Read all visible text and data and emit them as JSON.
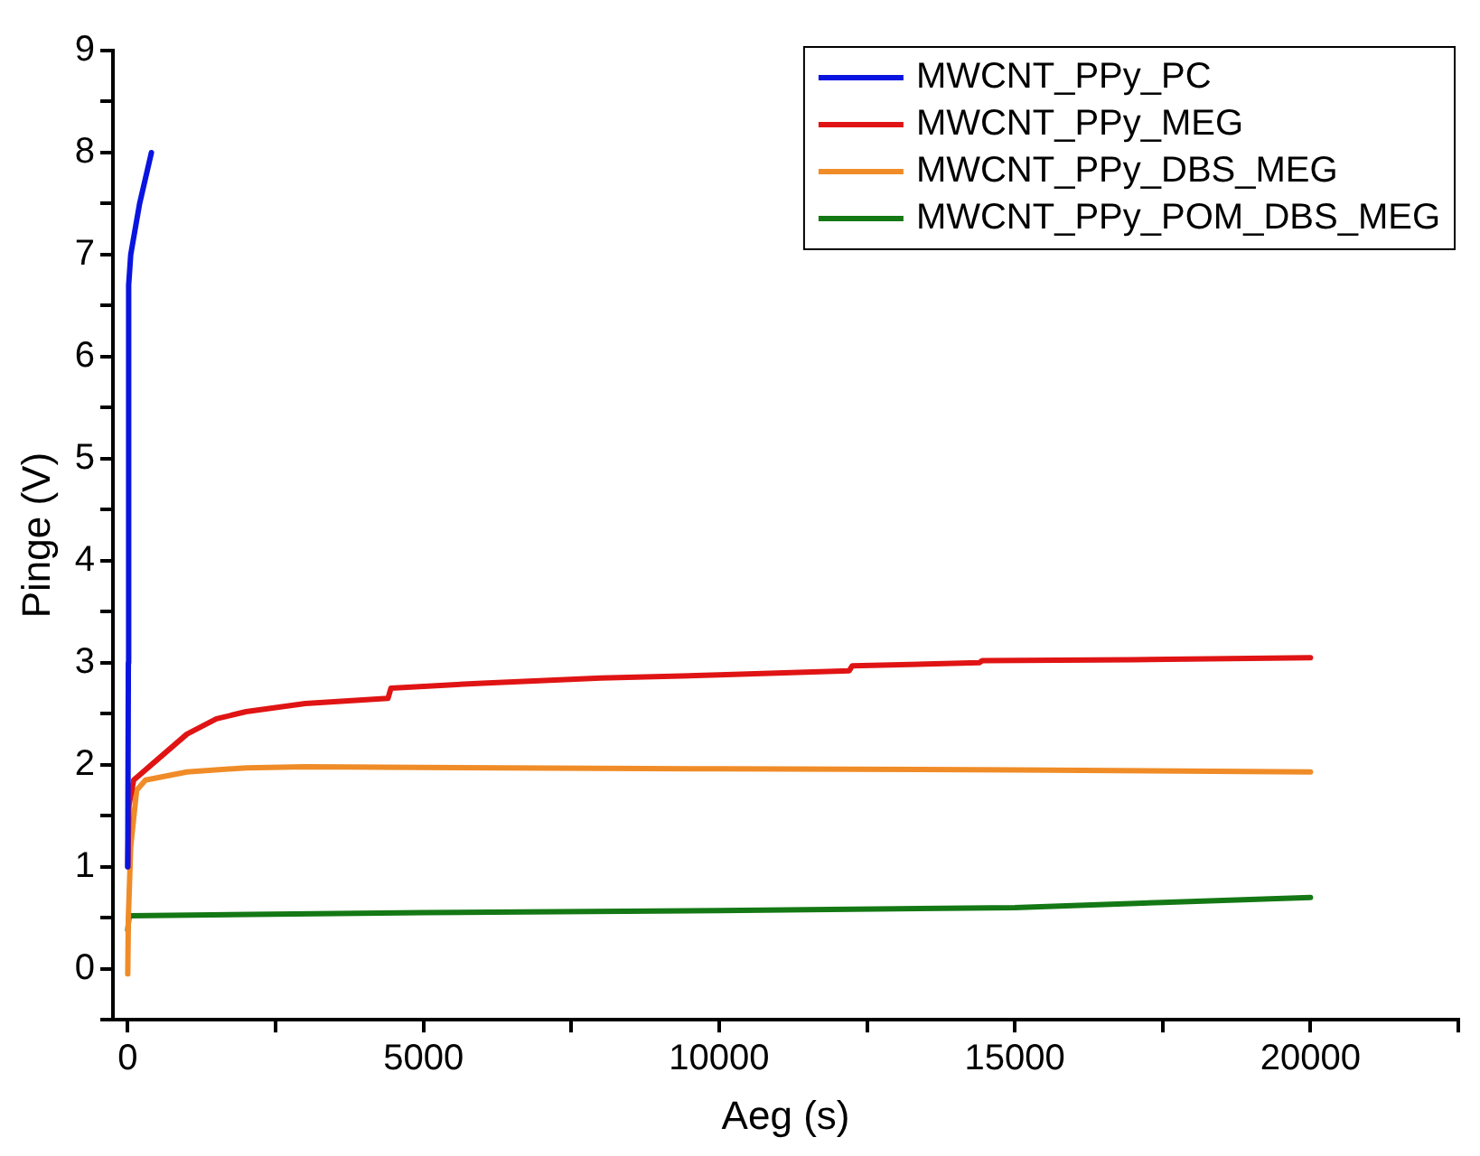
{
  "chart_data": {
    "type": "line",
    "xlabel": "Aeg (s)",
    "ylabel": "Pinge (V)",
    "xlim": [
      -250,
      22500
    ],
    "xticks": [
      0,
      {
        "value": 2500,
        "label": null
      },
      5000,
      {
        "value": 7500,
        "label": null
      },
      10000,
      {
        "value": 12500,
        "label": null
      },
      15000,
      {
        "value": 17500,
        "label": null
      },
      20000,
      {
        "value": 22500,
        "label": null
      }
    ],
    "ylim": [
      -0.5,
      9
    ],
    "yticks": [
      {
        "value": -0.5,
        "label": null
      },
      0,
      {
        "value": 0.5,
        "label": null
      },
      1,
      {
        "value": 1.5,
        "label": null
      },
      2,
      {
        "value": 2.5,
        "label": null
      },
      3,
      {
        "value": 3.5,
        "label": null
      },
      4,
      {
        "value": 4.5,
        "label": null
      },
      5,
      {
        "value": 5.5,
        "label": null
      },
      6,
      {
        "value": 6.5,
        "label": null
      },
      7,
      {
        "value": 7.5,
        "label": null
      },
      8,
      {
        "value": 8.5,
        "label": null
      },
      9
    ],
    "grid": false,
    "legend": "top right",
    "marker": "none",
    "line_style": "solid",
    "series": [
      {
        "name": "MWCNT_PPy_PC",
        "color": "#0a14e0",
        "x": [
          0,
          10,
          15,
          50,
          200,
          400
        ],
        "values": [
          1.0,
          3.0,
          6.7,
          7.0,
          7.5,
          8.0
        ]
      },
      {
        "name": "MWCNT_PPy_MEG",
        "color": "#e01414",
        "x": [
          0,
          20,
          100,
          500,
          1000,
          1500,
          2000,
          3000,
          4400,
          4450,
          6000,
          8000,
          10000,
          12200,
          12250,
          14400,
          14450,
          17000,
          20000
        ],
        "values": [
          1.0,
          1.6,
          1.85,
          2.05,
          2.3,
          2.45,
          2.52,
          2.6,
          2.65,
          2.75,
          2.8,
          2.85,
          2.88,
          2.92,
          2.97,
          3.0,
          3.02,
          3.03,
          3.05
        ]
      },
      {
        "name": "MWCNT_PPy_DBS_MEG",
        "color": "#f08c28",
        "x": [
          0,
          10,
          50,
          150,
          300,
          1000,
          2000,
          3000,
          10000,
          15000,
          20000
        ],
        "values": [
          -0.05,
          0.5,
          1.2,
          1.75,
          1.85,
          1.93,
          1.97,
          1.98,
          1.96,
          1.95,
          1.93
        ]
      },
      {
        "name": "MWCNT_PPy_POM_DBS_MEG",
        "color": "#147814",
        "x": [
          0,
          20,
          50,
          5000,
          10000,
          15000,
          17500,
          20000
        ],
        "values": [
          0.38,
          0.5,
          0.52,
          0.55,
          0.57,
          0.6,
          0.65,
          0.7
        ]
      }
    ]
  }
}
